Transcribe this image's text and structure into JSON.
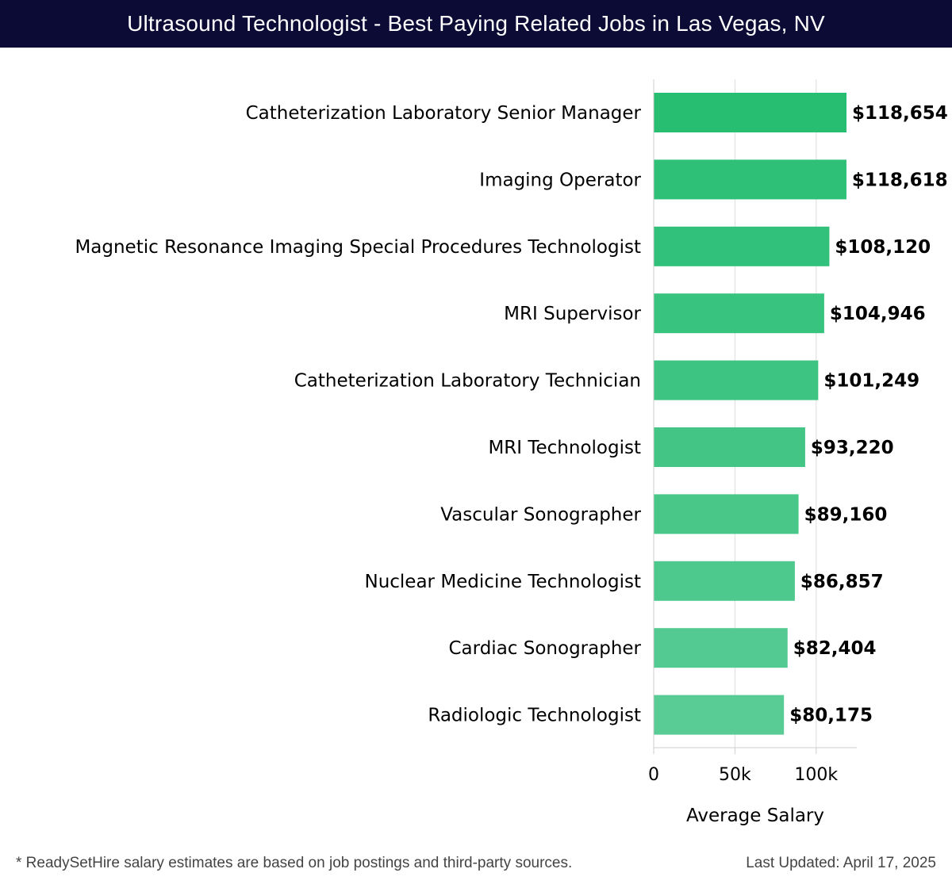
{
  "header": {
    "title": "Ultrasound Technologist - Best Paying Related Jobs in Las Vegas, NV"
  },
  "chart_data": {
    "type": "bar",
    "orientation": "horizontal",
    "categories": [
      "Catheterization Laboratory Senior Manager",
      "Imaging Operator",
      "Magnetic Resonance Imaging Special Procedures Technologist",
      "MRI Supervisor",
      "Catheterization Laboratory Technician",
      "MRI Technologist",
      "Vascular Sonographer",
      "Nuclear Medicine Technologist",
      "Cardiac Sonographer",
      "Radiologic Technologist"
    ],
    "values": [
      118654,
      118618,
      108120,
      104946,
      101249,
      93220,
      89160,
      86857,
      82404,
      80175
    ],
    "value_labels": [
      "$118,654",
      "$118,618",
      "$108,120",
      "$104,946",
      "$101,249",
      "$93,220",
      "$89,160",
      "$86,857",
      "$82,404",
      "$80,175"
    ],
    "xlabel": "Average Salary",
    "ylabel": "",
    "xlim": [
      0,
      125000
    ],
    "x_ticks": [
      0,
      50000,
      100000
    ],
    "x_tick_labels": [
      "0",
      "50k",
      "100k"
    ],
    "grid": true,
    "colors": {
      "bar_high": "#27be72",
      "bar_low": "#59cc95",
      "grid": "#dddddd",
      "axis": "#cccccc"
    }
  },
  "footer": {
    "note": "* ReadySetHire salary estimates are based on job postings and third-party sources.",
    "updated": "Last Updated: April 17, 2025"
  }
}
